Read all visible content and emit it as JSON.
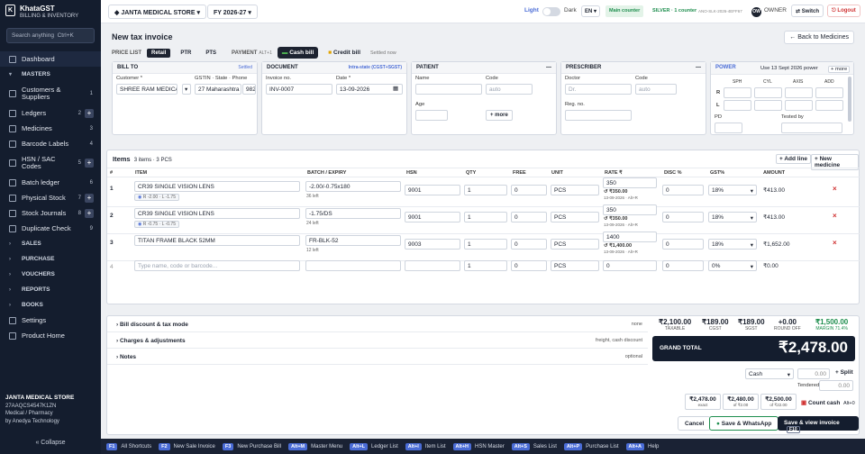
{
  "brand": {
    "name": "KhataGST",
    "sub": "BILLING & INVENTORY",
    "logo": "K"
  },
  "search": {
    "placeholder": "Search anything",
    "shortcut": "Ctrl+K"
  },
  "nav": [
    {
      "label": "Dashboard",
      "type": "item",
      "icon": "dashboard-icon"
    },
    {
      "label": "MASTERS",
      "type": "section"
    },
    {
      "label": "Customers & Suppliers",
      "type": "item",
      "count": "1",
      "icon": "users-icon",
      "tall": true
    },
    {
      "label": "Ledgers",
      "type": "item",
      "count": "2",
      "plus": true,
      "icon": "ledger-icon"
    },
    {
      "label": "Medicines",
      "type": "item",
      "count": "3",
      "icon": "pill-icon"
    },
    {
      "label": "Barcode Labels",
      "type": "item",
      "count": "4",
      "icon": "barcode-icon"
    },
    {
      "label": "HSN / SAC Codes",
      "type": "item",
      "count": "5",
      "plus": true,
      "icon": "hash-icon",
      "tall": true
    },
    {
      "label": "Batch ledger",
      "type": "item",
      "count": "6",
      "icon": "batch-icon"
    },
    {
      "label": "Physical Stock",
      "type": "item",
      "count": "7",
      "plus": true,
      "icon": "box-icon"
    },
    {
      "label": "Stock Journals",
      "type": "item",
      "count": "8",
      "plus": true,
      "icon": "journal-icon"
    },
    {
      "label": "Duplicate Check",
      "type": "item",
      "count": "9",
      "icon": "copy-icon"
    },
    {
      "label": "SALES",
      "type": "section"
    },
    {
      "label": "PURCHASE",
      "type": "section"
    },
    {
      "label": "VOUCHERS",
      "type": "section"
    },
    {
      "label": "REPORTS",
      "type": "section"
    },
    {
      "label": "BOOKS",
      "type": "section"
    },
    {
      "label": "Settings",
      "type": "item",
      "icon": "gear-icon"
    },
    {
      "label": "Product Home",
      "type": "item",
      "icon": "home-icon"
    }
  ],
  "company": {
    "name": "JANTA MEDICAL STORE",
    "gstin": "27AAQCS4547K1ZN",
    "type": "Medical / Pharmacy",
    "by": "by Anedya Technology"
  },
  "collapse": "« Collapse",
  "topbar": {
    "company": "JANTA MEDICAL STORE",
    "fy": "FY 2026-27",
    "light": "Light",
    "dark": "Dark",
    "lang": "EN",
    "counter": "Main counter",
    "plan": "SILVER · 1 counter",
    "code": "ANO-SLK-2026-4EFF67",
    "avatar": "OW",
    "role": "OWNER",
    "switch": "Switch",
    "logout": "Logout"
  },
  "page": {
    "title": "New tax invoice",
    "back": "← Back to Medicines"
  },
  "pricebar": {
    "label": "PRICE LIST",
    "retail": "Retail",
    "ptr": "PTR",
    "pts": "PTS",
    "payment": "PAYMENT",
    "payment_key": "ALT+1",
    "cash": "Cash bill",
    "credit": "Credit bill",
    "settled": "Settled now"
  },
  "billto": {
    "header": "BILL TO",
    "settled": "Settled",
    "customer_label": "Customer *",
    "customer": "SHREE RAM MEDICAL",
    "gstin_label": "GSTIN · State · Phone",
    "state": "27 Maharashtra",
    "phone": "982"
  },
  "document": {
    "header": "DOCUMENT",
    "type": "Intra-state (CGST+SGST)",
    "inv_label": "Invoice no.",
    "inv": "INV-0007",
    "date_label": "Date *",
    "date": "13-09-2026"
  },
  "patient": {
    "header": "PATIENT",
    "name_label": "Name",
    "code_label": "Code",
    "code_ph": "auto",
    "age_label": "Age",
    "more": "+ more"
  },
  "prescriber": {
    "header": "PRESCRIBER",
    "doctor_label": "Doctor",
    "doctor_ph": "Dr.",
    "code_label": "Code",
    "code_ph": "auto",
    "reg_label": "Reg. no."
  },
  "power": {
    "header": "POWER",
    "use": "Use 13 Sept 2026 power",
    "more": "+ more",
    "cols": [
      "SPH",
      "CYL",
      "AXIS",
      "ADD"
    ],
    "rows": [
      "R",
      "L"
    ],
    "pd": "PD",
    "tested": "Tested by"
  },
  "items": {
    "title": "Items",
    "summary": "3 items · 3 PCS",
    "add_line": "+ Add line",
    "new_med": "+ New medicine",
    "cols": [
      "#",
      "ITEM",
      "BATCH / EXPIRY",
      "HSN",
      "QTY",
      "FREE",
      "UNIT",
      "RATE ₹",
      "DISC %",
      "GST%",
      "AMOUNT"
    ],
    "rows": [
      {
        "n": "1",
        "item": "CR39 SINGLE VISION LENS",
        "sub": "R -2.00 · L -1.75",
        "batch": "-2.00/-0.75x180",
        "left": "36 left",
        "hsn": "9001",
        "qty": "1",
        "free": "0",
        "unit": "PCS",
        "rate": "350",
        "mrp": "₹350.00",
        "mrpdate": "13-09-2026 · Alt+R",
        "disc": "0",
        "gst": "18%",
        "amount": "₹413.00"
      },
      {
        "n": "2",
        "item": "CR39 SINGLE VISION LENS",
        "sub": "R -0.75 · L -0.75",
        "batch": "-1.75/DS",
        "left": "24 left",
        "hsn": "9001",
        "qty": "1",
        "free": "0",
        "unit": "PCS",
        "rate": "350",
        "mrp": "₹350.00",
        "mrpdate": "13-09-2026 · Alt+R",
        "disc": "0",
        "gst": "18%",
        "amount": "₹413.00"
      },
      {
        "n": "3",
        "item": "TITAN FRAME BLACK 52MM",
        "sub": "",
        "batch": "FR-BLK-52",
        "left": "12 left",
        "hsn": "9003",
        "qty": "1",
        "free": "0",
        "unit": "PCS",
        "rate": "1400",
        "mrp": "₹1,400.00",
        "mrpdate": "13-09-2026 · Alt+R",
        "disc": "0",
        "gst": "18%",
        "amount": "₹1,652.00"
      }
    ],
    "new_row": {
      "n": "4",
      "placeholder": "Type name, code or barcode...",
      "qty": "1",
      "free": "0",
      "unit": "PCS",
      "rate": "0",
      "disc": "0",
      "gst": "0%",
      "amount": "₹0.00"
    }
  },
  "bottom": {
    "bill_disc": "Bill discount & tax mode",
    "bill_disc_r": "none",
    "charges": "Charges & adjustments",
    "charges_r": "freight, cash discount",
    "notes": "Notes",
    "notes_r": "optional",
    "taxable": "₹2,100.00",
    "taxable_l": "TAXABLE",
    "cgst": "₹189.00",
    "cgst_l": "CGST",
    "sgst": "₹189.00",
    "sgst_l": "SGST",
    "round": "+0.00",
    "round_l": "ROUND OFF",
    "margin": "₹1,500.00",
    "margin_l": "MARGIN 71.4%",
    "grand_l": "GRAND TOTAL",
    "grand": "₹2,478.00",
    "pay_mode": "Cash",
    "pay_amt": "0.00",
    "split": "+ Split",
    "tendered_l": "Tendered",
    "tendered": "0.00",
    "q1": "₹2,478.00",
    "q1s": "exact",
    "q2": "₹2,480.00",
    "q2s": "of ₹2.00",
    "q3": "₹2,500.00",
    "q3s": "of ₹22.00",
    "count_cash": "Count cash",
    "count_key": "Alt+0",
    "cancel": "Cancel",
    "whatsapp": "Save & WhatsApp",
    "save": "Save & view invoice",
    "save_key": "F10"
  },
  "shortcuts": [
    {
      "k": "F1",
      "l": "All Shortcuts"
    },
    {
      "k": "F2",
      "l": "New Sale Invoice"
    },
    {
      "k": "F3",
      "l": "New Purchase Bill"
    },
    {
      "k": "Alt+M",
      "l": "Master Menu"
    },
    {
      "k": "Alt+L",
      "l": "Ledger List"
    },
    {
      "k": "Alt+I",
      "l": "Item List"
    },
    {
      "k": "Alt+H",
      "l": "HSN Master"
    },
    {
      "k": "Alt+S",
      "l": "Sales List"
    },
    {
      "k": "Alt+P",
      "l": "Purchase List"
    },
    {
      "k": "Alt+A",
      "l": "Help"
    }
  ],
  "colors": {
    "sidebar": "#141d2e",
    "accent": "#1d2330",
    "green": "#1e8e4e",
    "red": "#d03232"
  }
}
